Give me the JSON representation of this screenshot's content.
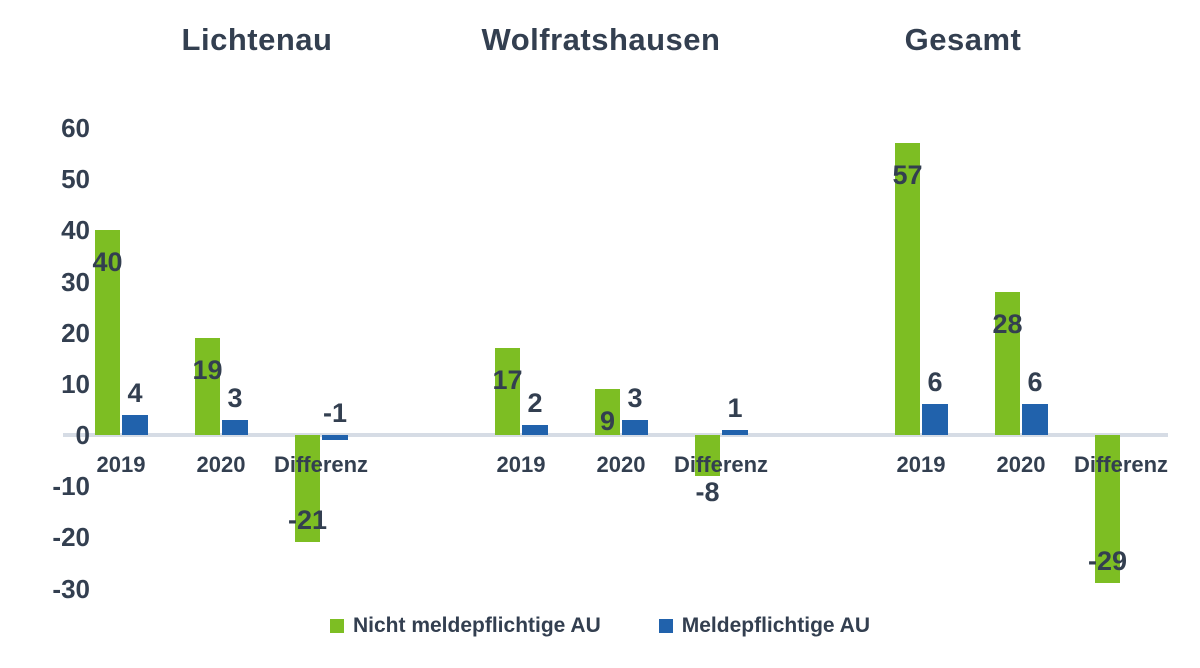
{
  "chart_data": {
    "type": "bar",
    "title": "",
    "groups": [
      {
        "title": "Lichtenau",
        "categories": [
          "2019",
          "2020",
          "Differenz"
        ],
        "series": [
          {
            "name": "Nicht meldepflichtige AU",
            "values": [
              40,
              19,
              -21
            ]
          },
          {
            "name": "Meldepflichtige AU",
            "values": [
              4,
              3,
              -1
            ]
          }
        ]
      },
      {
        "title": "Wolfratshausen",
        "categories": [
          "2019",
          "2020",
          "Differenz"
        ],
        "series": [
          {
            "name": "Nicht meldepflichtige AU",
            "values": [
              17,
              9,
              -8
            ]
          },
          {
            "name": "Meldepflichtige AU",
            "values": [
              2,
              3,
              1
            ]
          }
        ]
      },
      {
        "title": "Gesamt",
        "categories": [
          "2019",
          "2020",
          "Differenz"
        ],
        "series": [
          {
            "name": "Nicht meldepflichtige AU",
            "values": [
              57,
              28,
              -29
            ]
          },
          {
            "name": "Meldepflichtige AU",
            "values": [
              6,
              6,
              null
            ]
          }
        ]
      }
    ],
    "y_ticks": [
      60,
      50,
      40,
      30,
      20,
      10,
      0,
      -10,
      -20,
      -30
    ],
    "ylim": [
      -30,
      60
    ],
    "grid": false,
    "legend": {
      "position": "bottom",
      "items": [
        {
          "label": "Nicht meldepflichtige AU",
          "color": "#7DBE23"
        },
        {
          "label": "Meldepflichtige AU",
          "color": "#2162AC"
        }
      ]
    },
    "colors": {
      "green_series": "#7DBE23",
      "blue_series": "#2162AC",
      "text": "#333F50",
      "axis_line": "#D6DCE5"
    }
  }
}
